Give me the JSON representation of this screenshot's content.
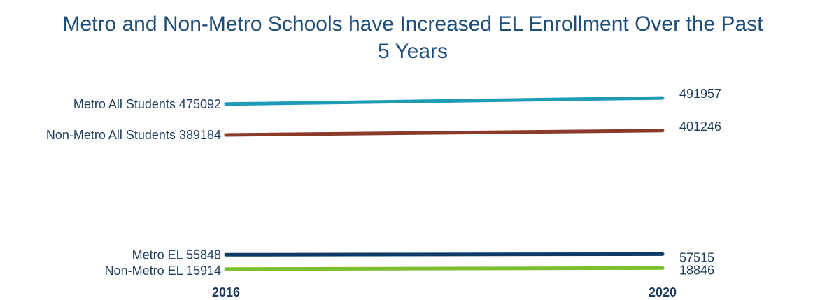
{
  "chart_data": {
    "type": "line",
    "title_lines": [
      "Metro and Non-Metro Schools have Increased EL Enrollment Over the Past",
      "5 Years"
    ],
    "categories": [
      "2016",
      "2020"
    ],
    "series": [
      {
        "name": "Metro All Students",
        "values": [
          475092,
          491957
        ],
        "start_label": "Metro All Students 475092",
        "end_label": "491957",
        "color": "#1f9bb5"
      },
      {
        "name": "Non-Metro All Students",
        "values": [
          389184,
          401246
        ],
        "start_label": "Non-Metro All Students 389184",
        "end_label": "401246",
        "color": "#8b3a2a"
      },
      {
        "name": "Metro EL",
        "values": [
          55848,
          57515
        ],
        "start_label": "Metro EL 55848",
        "end_label": "57515",
        "color": "#0d3a66"
      },
      {
        "name": "Non-Metro EL",
        "values": [
          15914,
          18846
        ],
        "start_label": "Non-Metro EL 15914",
        "end_label": "18846",
        "color": "#7cbf2f"
      }
    ],
    "legend": "none",
    "grid": false
  }
}
